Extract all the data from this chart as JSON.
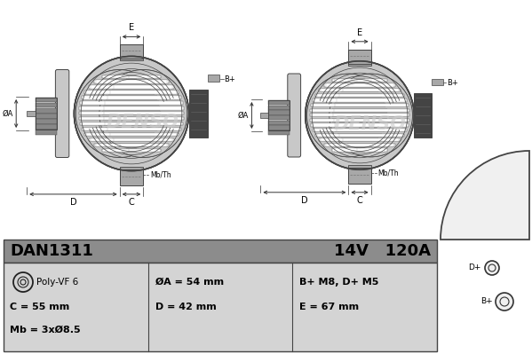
{
  "bg_color": "#ffffff",
  "fig_width": 5.99,
  "fig_height": 3.99,
  "dpi": 100,
  "part_number": "DAN1311",
  "voltage": "14V",
  "current": "120A",
  "poly_vf": "Poly-VF 6",
  "param_C": "C = 55 mm",
  "param_Mb": "Mb = 3xØ8.5",
  "param_OA": "ØA = 54 mm",
  "param_D": "D = 42 mm",
  "param_BP_DP": "B+ M8, D+ M5",
  "param_E": "E = 67 mm",
  "header_bg": "#8c8c8c",
  "table_bg": "#d4d4d4",
  "border_color": "#444444",
  "text_color": "#000000",
  "alt_body_light": "#c8c8c8",
  "alt_body_mid": "#a8a8a8",
  "alt_body_dark": "#888888",
  "alt_rotor_dark": "#444444",
  "watermark_color": "#cccccc",
  "dim_line_color": "#333333"
}
